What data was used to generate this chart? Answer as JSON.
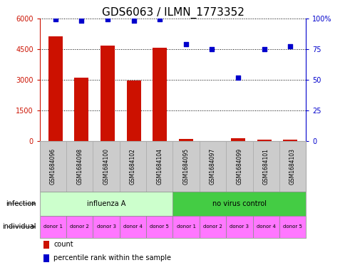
{
  "title": "GDS6063 / ILMN_1773352",
  "samples": [
    "GSM1684096",
    "GSM1684098",
    "GSM1684100",
    "GSM1684102",
    "GSM1684104",
    "GSM1684095",
    "GSM1684097",
    "GSM1684099",
    "GSM1684101",
    "GSM1684103"
  ],
  "counts": [
    5100,
    3100,
    4650,
    2950,
    4550,
    130,
    0,
    170,
    90,
    100
  ],
  "percentiles": [
    99,
    98,
    99,
    98,
    99,
    79,
    75,
    52,
    75,
    77
  ],
  "bar_color": "#cc1100",
  "dot_color": "#0000cc",
  "ylim_left": [
    0,
    6000
  ],
  "ylim_right": [
    0,
    100
  ],
  "yticks_left": [
    0,
    1500,
    3000,
    4500,
    6000
  ],
  "yticks_right": [
    0,
    25,
    50,
    75,
    100
  ],
  "ytick_labels_left": [
    "0",
    "1500",
    "3000",
    "4500",
    "6000"
  ],
  "ytick_labels_right": [
    "0",
    "25",
    "50",
    "75",
    "100%"
  ],
  "infection_groups": [
    {
      "label": "influenza A",
      "span": [
        0,
        5
      ],
      "color": "#ccffcc"
    },
    {
      "label": "no virus control",
      "span": [
        5,
        10
      ],
      "color": "#44cc44"
    }
  ],
  "individual_labels": [
    "donor 1",
    "donor 2",
    "donor 3",
    "donor 4",
    "donor 5",
    "donor 1",
    "donor 2",
    "donor 3",
    "donor 4",
    "donor 5"
  ],
  "individual_color": "#ff77ff",
  "infection_row_label": "infection",
  "individual_row_label": "individual",
  "legend_count_label": "count",
  "legend_pct_label": "percentile rank within the sample",
  "background_color": "#ffffff",
  "left_axis_color": "#cc1100",
  "right_axis_color": "#0000cc",
  "bar_width": 0.55,
  "sample_box_color": "#cccccc",
  "sample_box_border": "#aaaaaa",
  "title_fontsize": 11,
  "tick_fontsize": 7,
  "sample_fontsize": 5.5,
  "row_label_fontsize": 7,
  "indiv_fontsize": 5,
  "legend_fontsize": 7
}
